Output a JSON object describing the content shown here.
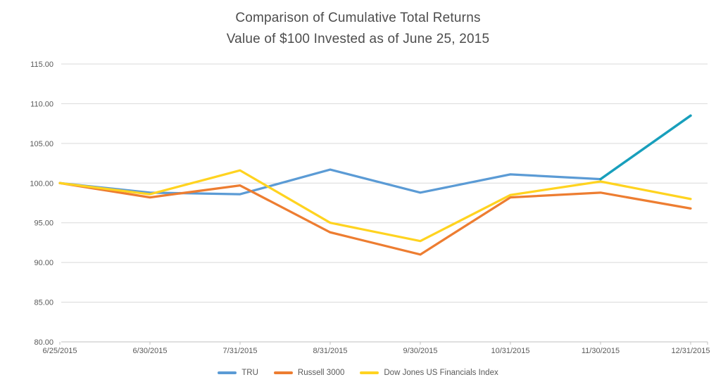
{
  "chart_data": {
    "type": "line",
    "title": "Comparison of Cumulative Total Returns",
    "subtitle": "Value of $100 Invested as of June 25, 2015",
    "categories": [
      "6/25/2015",
      "6/30/2015",
      "7/31/2015",
      "8/31/2015",
      "9/30/2015",
      "10/31/2015",
      "11/30/2015",
      "12/31/2015"
    ],
    "series": [
      {
        "name": "TRU",
        "color": "#5B9BD5",
        "final_segment_color": "#189FBC",
        "values": [
          100.0,
          98.8,
          98.6,
          101.7,
          98.8,
          101.1,
          100.5,
          108.5
        ]
      },
      {
        "name": "Russell 3000",
        "color": "#ED7D31",
        "values": [
          100.0,
          98.2,
          99.7,
          93.8,
          91.0,
          98.2,
          98.8,
          96.8
        ]
      },
      {
        "name": "Dow Jones US Financials Index",
        "color": "#FFD320",
        "values": [
          100.0,
          98.6,
          101.6,
          95.0,
          92.7,
          98.5,
          100.2,
          98.0
        ]
      }
    ],
    "ylim": [
      80,
      115
    ],
    "ytick_step": 5,
    "yticks": [
      "80.00",
      "85.00",
      "90.00",
      "95.00",
      "100.00",
      "105.00",
      "110.00",
      "115.00"
    ],
    "grid": true,
    "legend_position": "bottom",
    "colors": {
      "gridline": "#D9D9D9",
      "axis_line": "#BFBFBF",
      "axis_text": "#595959",
      "title_text": "#4D4D4D"
    }
  }
}
